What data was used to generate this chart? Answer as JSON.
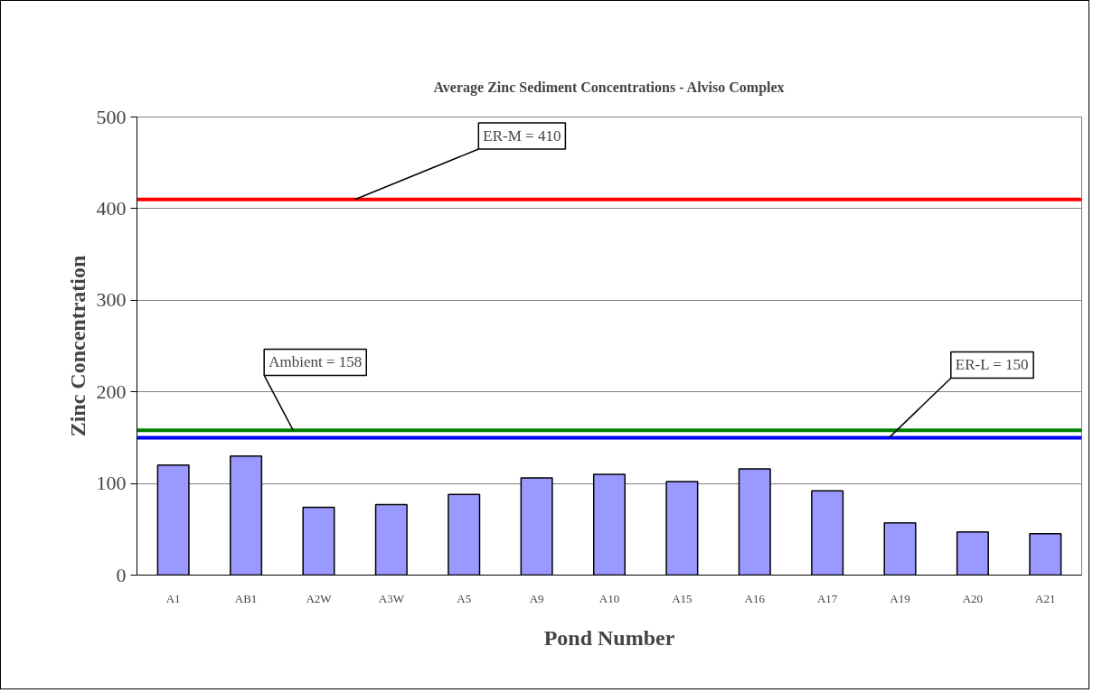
{
  "chart_data": {
    "type": "bar",
    "title": "Average Zinc Sediment Concentrations - Alviso Complex",
    "xlabel": "Pond Number",
    "ylabel": "Zinc Concentration",
    "categories": [
      "A1",
      "AB1",
      "A2W",
      "A3W",
      "A5",
      "A9",
      "A10",
      "A15",
      "A16",
      "A17",
      "A19",
      "A20",
      "A21"
    ],
    "values": [
      120,
      130,
      74,
      77,
      88,
      106,
      110,
      102,
      116,
      92,
      57,
      47,
      45
    ],
    "color": "#9999ff",
    "ylim": [
      0,
      500
    ],
    "yticks": [
      0,
      100,
      200,
      300,
      400,
      500
    ],
    "grid": "y",
    "ref_lines": [
      {
        "axis": "y",
        "value": 410,
        "label": "ER-M = 410",
        "color": "#ff0000"
      },
      {
        "axis": "y",
        "value": 158,
        "label": "Ambient = 158",
        "color": "#008000"
      },
      {
        "axis": "y",
        "value": 150,
        "label": "ER-L = 150",
        "color": "#0000ff"
      }
    ]
  }
}
